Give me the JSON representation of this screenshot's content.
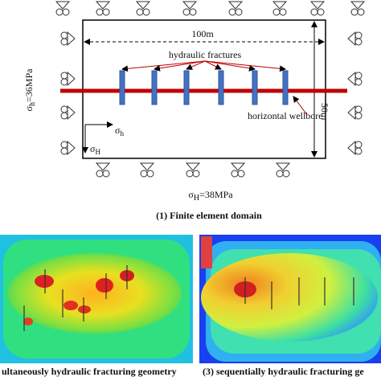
{
  "domain_diagram": {
    "width_label": "100m",
    "height_label": "50m",
    "fractures_label": "hydraulic fractures",
    "wellbore_label": "horizontal wellbore",
    "stress_h": {
      "symbol": "σ",
      "sub": "h",
      "rest": "=36MPa"
    },
    "stress_H": {
      "symbol": "σ",
      "sub": "H",
      "rest": "=38MPa"
    },
    "axis_h": {
      "symbol": "σ",
      "sub": "h"
    },
    "axis_H": {
      "symbol": "σ",
      "sub": "H"
    },
    "caption": "(1) Finite element domain"
  },
  "panels": [
    {
      "caption": "ultaneously hydraulic fracturing geometry"
    },
    {
      "caption": "(3) sequentially hydraulic fracturing ge"
    }
  ]
}
